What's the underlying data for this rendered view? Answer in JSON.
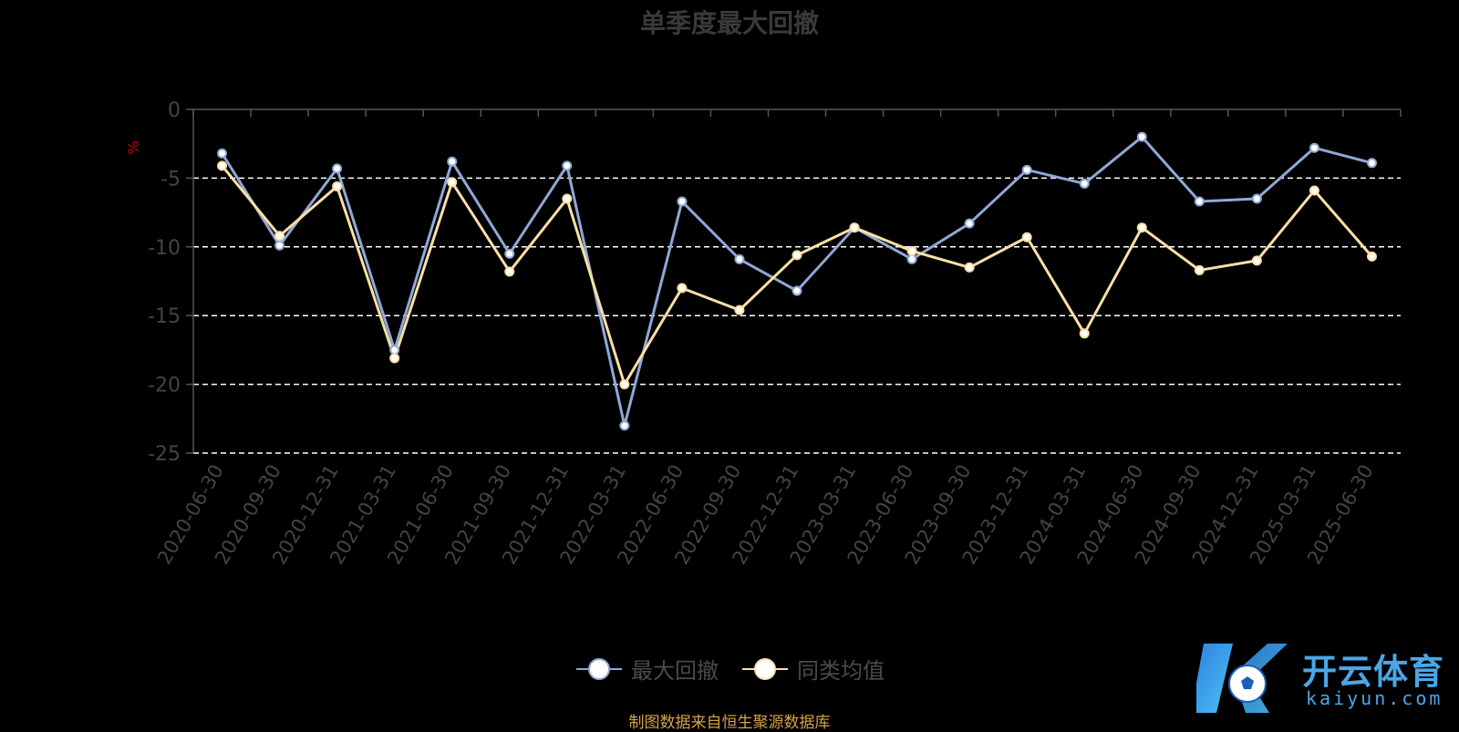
{
  "title": "单季度最大回撤",
  "source_note": "制图数据来自恒生聚源数据库",
  "watermark": {
    "cn": "开云体育",
    "en": "kaiyun.com"
  },
  "colors": {
    "series1": "#8fa8d6",
    "series2": "#fbdfa5",
    "grid": "#ffffff",
    "axis": "#555555",
    "tick_text": "#444444",
    "ylabel": "#cc0000"
  },
  "chart_data": {
    "type": "line",
    "title": "单季度最大回撤",
    "ylabel": "%",
    "ylim": [
      -25,
      0
    ],
    "yticks": [
      0,
      -5,
      -10,
      -15,
      -20,
      -25
    ],
    "grid": true,
    "legend_position": "bottom-center",
    "categories": [
      "2020-06-30",
      "2020-09-30",
      "2020-12-31",
      "2021-03-31",
      "2021-06-30",
      "2021-09-30",
      "2021-12-31",
      "2022-03-31",
      "2022-06-30",
      "2022-09-30",
      "2022-12-31",
      "2023-03-31",
      "2023-06-30",
      "2023-09-30",
      "2023-12-31",
      "2024-03-31",
      "2024-06-30",
      "2024-09-30",
      "2024-12-31",
      "2025-03-31",
      "2025-06-30"
    ],
    "series": [
      {
        "name": "最大回撤",
        "values": [
          -3.2,
          -9.9,
          -4.3,
          -17.5,
          -3.8,
          -10.5,
          -4.1,
          -23.0,
          -6.7,
          -10.9,
          -13.2,
          -8.6,
          -10.9,
          -8.3,
          -4.4,
          -5.4,
          -2.0,
          -6.7,
          -6.5,
          -2.8,
          -3.9
        ]
      },
      {
        "name": "同类均值",
        "values": [
          -4.1,
          -9.2,
          -5.6,
          -18.1,
          -5.3,
          -11.8,
          -6.5,
          -20.0,
          -13.0,
          -14.6,
          -10.6,
          -8.6,
          -10.3,
          -11.5,
          -9.3,
          -16.3,
          -8.6,
          -11.7,
          -11.0,
          -5.9,
          -10.7
        ]
      }
    ]
  }
}
